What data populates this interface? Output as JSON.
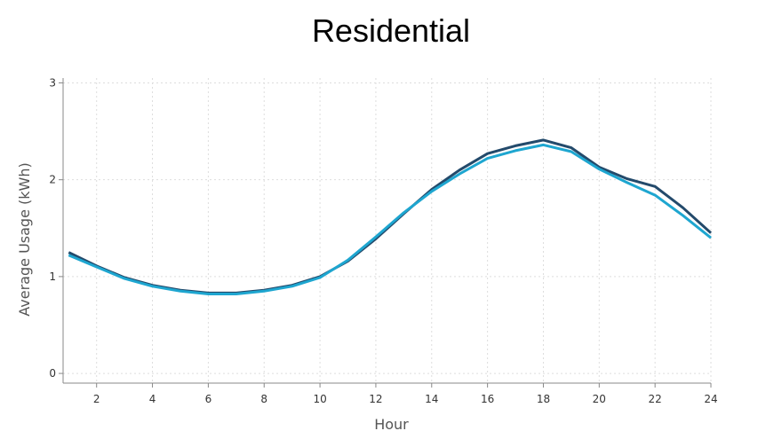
{
  "chart_data": {
    "type": "line",
    "title": "Residential",
    "xlabel": "Hour",
    "ylabel": "Average Usage (kWh)",
    "xlim": [
      0.8,
      24
    ],
    "ylim": [
      -0.1,
      3.05
    ],
    "xticks": [
      2,
      4,
      6,
      8,
      10,
      12,
      14,
      16,
      18,
      20,
      22,
      24
    ],
    "yticks": [
      0,
      1,
      2,
      3
    ],
    "grid": true,
    "colors": [
      "#234a6b",
      "#1ea6d0"
    ],
    "x": [
      1,
      2,
      3,
      4,
      5,
      6,
      7,
      8,
      9,
      10,
      11,
      12,
      13,
      14,
      15,
      16,
      17,
      18,
      19,
      20,
      21,
      22,
      23,
      24
    ],
    "series": [
      {
        "values": [
          1.25,
          1.11,
          0.99,
          0.91,
          0.86,
          0.83,
          0.83,
          0.86,
          0.91,
          1.0,
          1.16,
          1.39,
          1.65,
          1.9,
          2.1,
          2.27,
          2.35,
          2.41,
          2.33,
          2.13,
          2.01,
          1.93,
          1.71,
          1.45
        ]
      },
      {
        "values": [
          1.22,
          1.1,
          0.98,
          0.9,
          0.85,
          0.82,
          0.82,
          0.85,
          0.9,
          0.99,
          1.17,
          1.41,
          1.66,
          1.88,
          2.06,
          2.22,
          2.3,
          2.36,
          2.29,
          2.11,
          1.97,
          1.84,
          1.63,
          1.4
        ]
      }
    ]
  }
}
